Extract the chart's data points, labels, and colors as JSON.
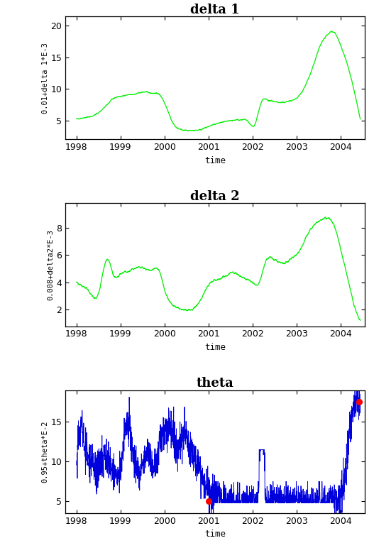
{
  "title1": "delta 1",
  "title2": "delta 2",
  "title3": "theta",
  "ylabel1": "0.01+delta 1*E-3",
  "ylabel2": "0.008+delta2*E-3",
  "ylabel3": "0.95+theta*E-2",
  "xlabel": "time",
  "yticks1": [
    5,
    10,
    15,
    20
  ],
  "yticks2": [
    2,
    4,
    6,
    8
  ],
  "yticks3": [
    5,
    10,
    15
  ],
  "ylim1": [
    2.0,
    21.5
  ],
  "ylim2": [
    0.8,
    9.8
  ],
  "ylim3": [
    3.5,
    19.0
  ],
  "xlim": [
    1997.75,
    2004.55
  ],
  "xticks": [
    1998,
    1999,
    2000,
    2001,
    2002,
    2003,
    2004
  ],
  "line_color1": "#00ee00",
  "line_color2": "#00ee00",
  "line_color3": "#0000dd",
  "red_dot_color": "#ff0000",
  "background": "#ffffff",
  "fig_bg": "#ffffff",
  "seed": 42,
  "n_points": 1700
}
